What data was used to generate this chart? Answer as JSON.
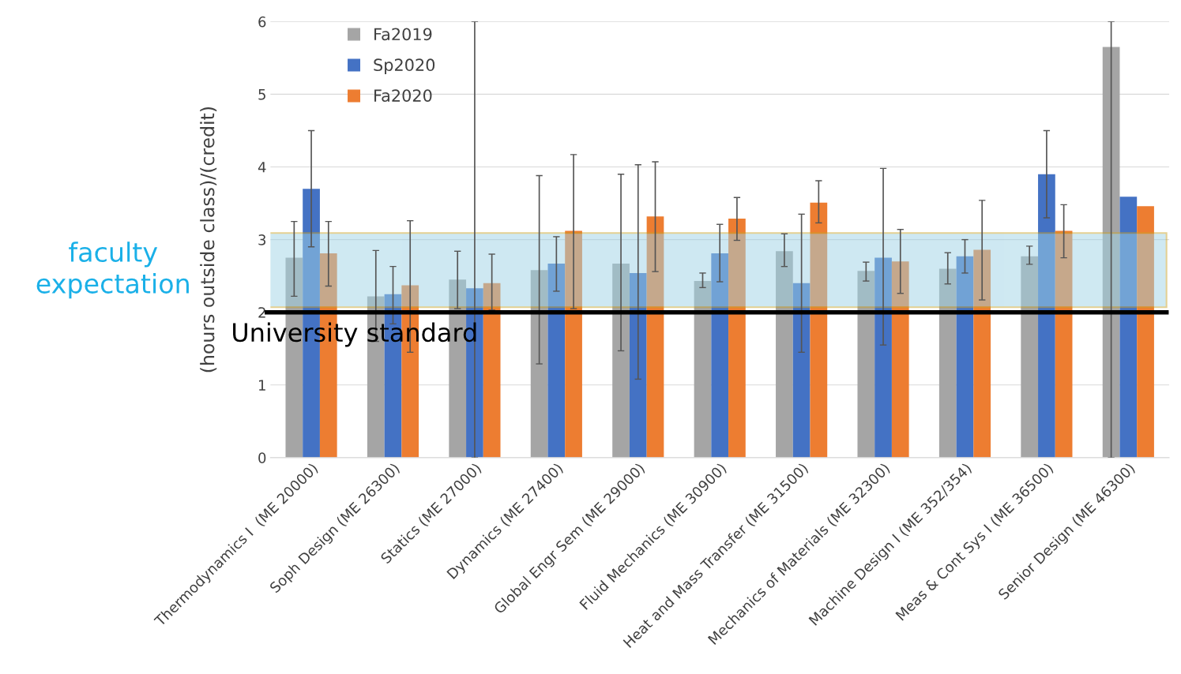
{
  "chart_data": {
    "type": "bar",
    "ylabel": "(hours outside class)/(credit)",
    "categories": [
      "Thermodynamics I  (ME 20000)",
      "Soph Design (ME 26300)",
      "Statics (ME 27000)",
      "Dynamics (ME 27400)",
      "Global Engr Sem (ME 29000)",
      "Fluid Mechanics (ME 30900)",
      "Heat and Mass Transfer (ME 31500)",
      "Mechanics of Materials (ME 32300)",
      "Machine Design I (ME 352/354)",
      "Meas & Cont Sys I (ME 36500)",
      "Senior Design (ME 46300)"
    ],
    "series": [
      {
        "name": "Fa2019",
        "color": "#a5a5a5",
        "values": [
          2.75,
          2.22,
          2.45,
          2.58,
          2.67,
          2.43,
          2.84,
          2.57,
          2.6,
          2.77,
          5.65
        ],
        "errors": [
          [
            2.22,
            3.25
          ],
          [
            1.6,
            2.85
          ],
          [
            2.05,
            2.84
          ],
          [
            1.29,
            3.88
          ],
          [
            1.47,
            3.9
          ],
          [
            2.34,
            2.54
          ],
          [
            2.63,
            3.08
          ],
          [
            2.43,
            2.69
          ],
          [
            2.39,
            2.82
          ],
          [
            2.66,
            2.91
          ],
          [
            0,
            6
          ]
        ]
      },
      {
        "name": "Sp2020",
        "color": "#4472c4",
        "values": [
          3.7,
          2.25,
          2.33,
          2.67,
          2.54,
          2.81,
          2.4,
          2.75,
          2.77,
          3.9,
          3.59
        ],
        "errors": [
          [
            2.9,
            4.5
          ],
          [
            1.84,
            2.63
          ],
          [
            0,
            6
          ],
          [
            2.29,
            3.04
          ],
          [
            1.08,
            4.03
          ],
          [
            2.42,
            3.21
          ],
          [
            1.45,
            3.35
          ],
          [
            1.55,
            3.98
          ],
          [
            2.54,
            3.0
          ],
          [
            3.3,
            4.5
          ],
          null
        ]
      },
      {
        "name": "Fa2020",
        "color": "#ed7d31",
        "values": [
          2.81,
          2.37,
          2.4,
          3.12,
          3.32,
          3.29,
          3.51,
          2.7,
          2.86,
          3.12,
          3.46
        ],
        "errors": [
          [
            2.36,
            3.25
          ],
          [
            1.45,
            3.26
          ],
          [
            2.03,
            2.8
          ],
          [
            2.05,
            4.17
          ],
          [
            2.56,
            4.07
          ],
          [
            2.99,
            3.58
          ],
          [
            3.23,
            3.81
          ],
          [
            2.26,
            3.14
          ],
          [
            2.17,
            3.54
          ],
          [
            2.75,
            3.48
          ],
          null
        ]
      }
    ],
    "ylim": [
      0,
      6
    ],
    "yticks": [
      0,
      1,
      2,
      3,
      4,
      5,
      6
    ],
    "grid": "y",
    "legend": "top left",
    "ref_lines": [
      {
        "axis": "y",
        "value": 2,
        "label": "University standard",
        "color": "#000000"
      }
    ],
    "bands": [
      {
        "axis": "y",
        "from": 2.07,
        "to": 3.09,
        "label": "faculty\nexpectation",
        "color": "#9fd3e6"
      }
    ]
  }
}
